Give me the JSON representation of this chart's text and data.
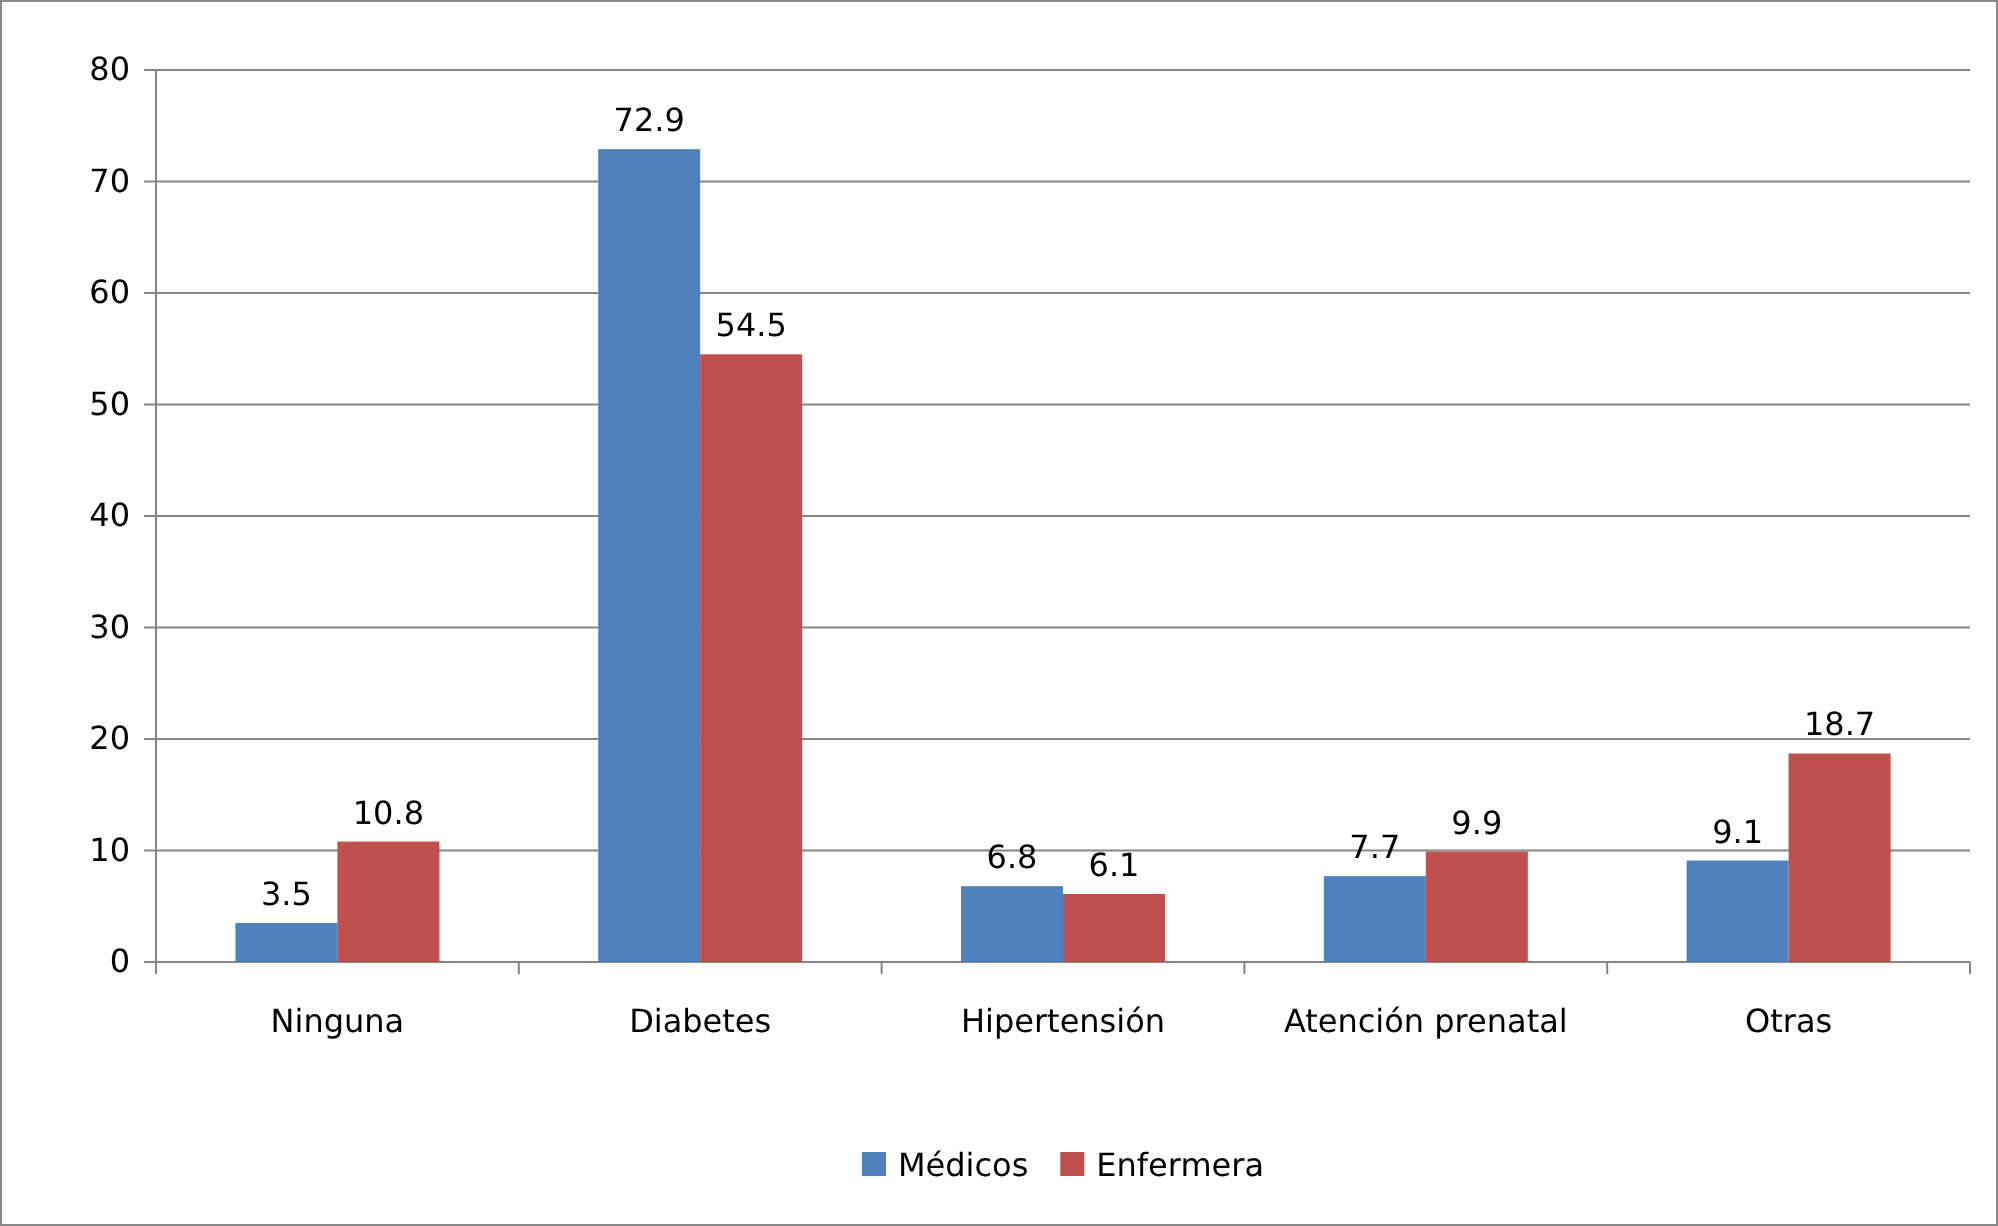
{
  "chart_data": {
    "type": "bar",
    "categories": [
      "Ninguna",
      "Diabetes",
      "Hipertensión",
      "Atención prenatal",
      "Otras"
    ],
    "series": [
      {
        "name": "Médicos",
        "color": "#4f81bd",
        "values": [
          3.5,
          72.9,
          6.8,
          7.7,
          9.1
        ]
      },
      {
        "name": "Enfermera",
        "color": "#c0504d",
        "values": [
          10.8,
          54.5,
          6.1,
          9.9,
          18.7
        ]
      }
    ],
    "ylim": [
      0,
      80
    ],
    "yticks": [
      0,
      10,
      20,
      30,
      40,
      50,
      60,
      70,
      80
    ],
    "grid": "y",
    "legend": "bottom",
    "data_labels": true
  }
}
